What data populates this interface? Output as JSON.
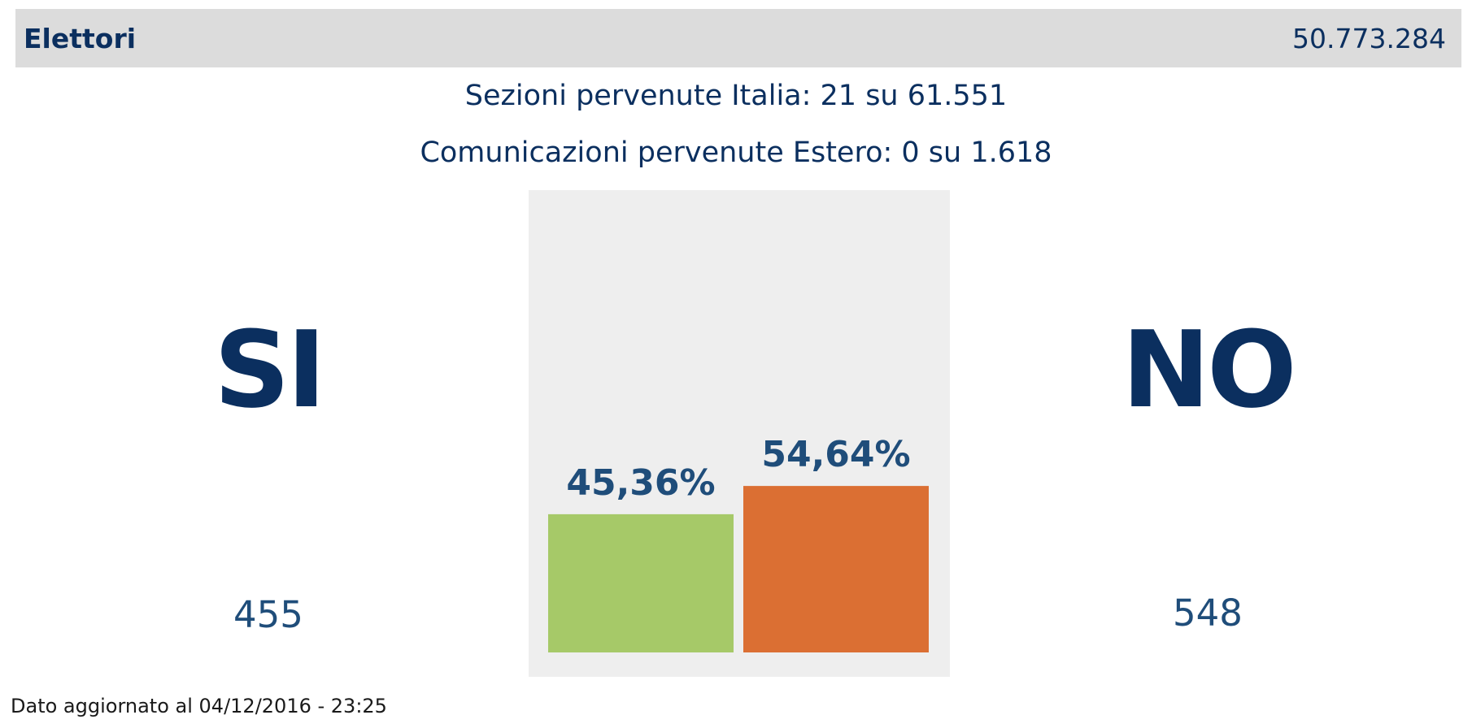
{
  "header": {
    "label": "Elettori",
    "value": "50.773.284"
  },
  "info": {
    "sezioni": "Sezioni pervenute Italia: 21 su 61.551",
    "comunicazioni": "Comunicazioni pervenute Estero: 0 su 1.618"
  },
  "options": {
    "si": {
      "label": "SI",
      "count": "455"
    },
    "no": {
      "label": "NO",
      "count": "548"
    }
  },
  "footer": {
    "updated": "Dato aggiornato al 04/12/2016 - 23:25"
  },
  "colors": {
    "si": "#a6c968",
    "no": "#db6f33",
    "text": "#0b2f5f"
  },
  "chart_data": {
    "type": "bar",
    "categories": [
      "SI",
      "NO"
    ],
    "values": [
      45.36,
      54.64
    ],
    "value_labels": [
      "45,36%",
      "54,64%"
    ],
    "ylim": [
      0,
      100
    ],
    "grid": false
  }
}
